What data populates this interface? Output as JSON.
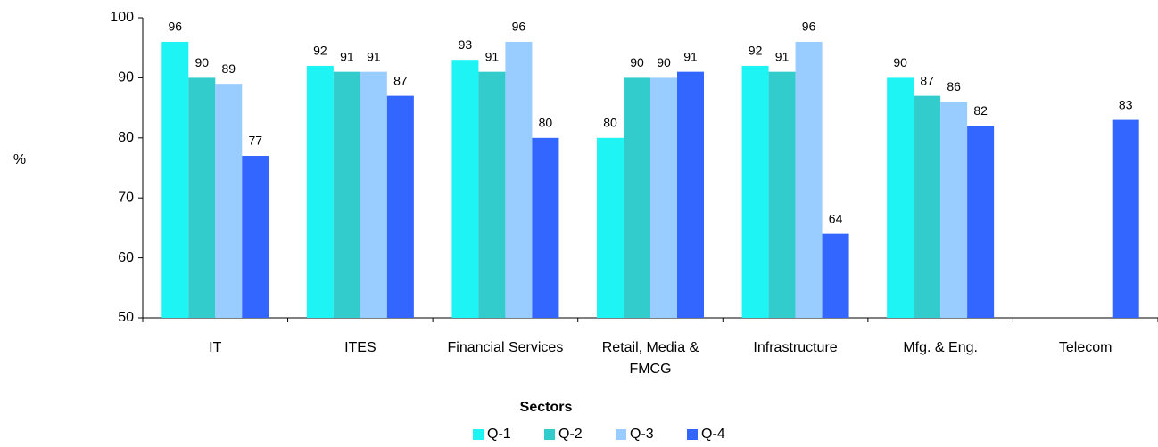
{
  "chart_data": {
    "type": "bar",
    "categories": [
      "IT",
      "ITES",
      "Financial Services",
      "Retail, Media & FMCG",
      "Infrastructure",
      "Mfg. & Eng.",
      "Telecom"
    ],
    "series": [
      {
        "name": "Q-1",
        "color": "#1ff4f4",
        "values": [
          96,
          92,
          93,
          80,
          92,
          90,
          null
        ]
      },
      {
        "name": "Q-2",
        "color": "#33cccc",
        "values": [
          90,
          91,
          91,
          90,
          91,
          87,
          null
        ]
      },
      {
        "name": "Q-3",
        "color": "#99ccff",
        "values": [
          89,
          91,
          96,
          90,
          96,
          86,
          null
        ]
      },
      {
        "name": "Q-4",
        "color": "#3366ff",
        "values": [
          77,
          87,
          80,
          91,
          64,
          82,
          83
        ]
      }
    ],
    "ylabel": "%",
    "xlabel": "Sectors",
    "ylim": [
      50,
      100
    ],
    "yticks": [
      50,
      60,
      70,
      80,
      90,
      100
    ],
    "grid": false,
    "legend": "bottom"
  }
}
